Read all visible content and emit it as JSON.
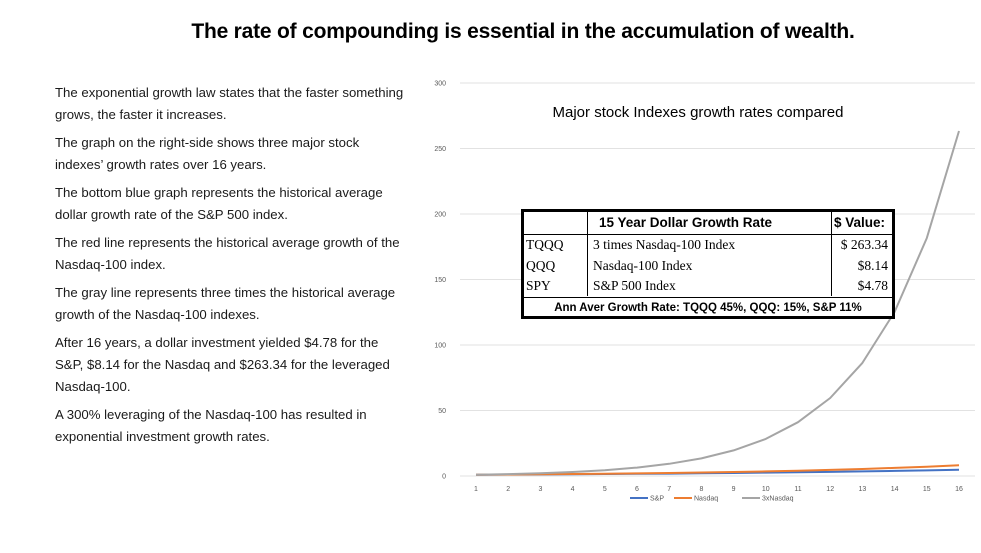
{
  "slide": {
    "title": "The rate of compounding  is essential in the accumulation of wealth."
  },
  "bullets": [
    "The exponential  growth law states that the faster something grows,  the faster it increases.",
    "The graph on the right-side shows three major stock indexes’ growth  rates over  16 years.",
    "The bottom  blue graph represents the historical average dollar growth  rate of the S&P 500 index.",
    "The red line represents the historical average growth  of the Nasdaq-100 index.",
    "The gray line represents three times the historical average growth  of the Nasdaq-100 indexes.",
    "After  16 years, a dollar investment  yielded $4.78 for the S&P, $8.14 for the Nasdaq and $263.34 for the leveraged Nasdaq-100.",
    "A 300%  leveraging of the Nasdaq-100 has resulted in exponential  investment  growth rates."
  ],
  "table": {
    "header_name": "15 Year Dollar Growth Rate",
    "header_value": "$ Value:",
    "rows": [
      {
        "ticker": "TQQQ",
        "name": "3 times Nasdaq-100 Index",
        "value": "$ 263.34"
      },
      {
        "ticker": "QQQ",
        "name": "Nasdaq-100 Index",
        "value": "$8.14"
      },
      {
        "ticker": "SPY",
        "name": "S&P 500 Index",
        "value": "$4.78"
      }
    ],
    "footer": "Ann Aver Growth Rate: TQQQ 45%, QQQ: 15%, S&P 11%"
  },
  "chart_data": {
    "type": "line",
    "title": "Major stock Indexes growth rates compared",
    "xlabel": "",
    "ylabel": "",
    "categories": [
      "1",
      "2",
      "3",
      "4",
      "5",
      "6",
      "7",
      "8",
      "9",
      "10",
      "11",
      "12",
      "13",
      "14",
      "15",
      "16"
    ],
    "ylim": [
      0,
      300
    ],
    "yticks": [
      "0",
      "50",
      "100",
      "150",
      "200",
      "250",
      "300"
    ],
    "grid": true,
    "legend": "bottom",
    "series": [
      {
        "name": "S&P",
        "color": "#4472C4",
        "values": [
          1,
          1.11,
          1.23,
          1.37,
          1.52,
          1.69,
          1.87,
          2.08,
          2.3,
          2.56,
          2.84,
          3.15,
          3.5,
          3.88,
          4.31,
          4.78
        ]
      },
      {
        "name": "Nasdaq",
        "color": "#ED7D31",
        "values": [
          1,
          1.15,
          1.32,
          1.52,
          1.75,
          2.01,
          2.31,
          2.66,
          3.06,
          3.52,
          4.05,
          4.65,
          5.35,
          6.15,
          7.08,
          8.14
        ]
      },
      {
        "name": "3xNasdaq",
        "color": "#A5A5A5",
        "values": [
          1,
          1.45,
          2.1,
          3.05,
          4.42,
          6.41,
          9.29,
          13.47,
          19.54,
          28.33,
          41.08,
          59.56,
          86.37,
          125.23,
          181.59,
          263.34
        ]
      }
    ]
  }
}
